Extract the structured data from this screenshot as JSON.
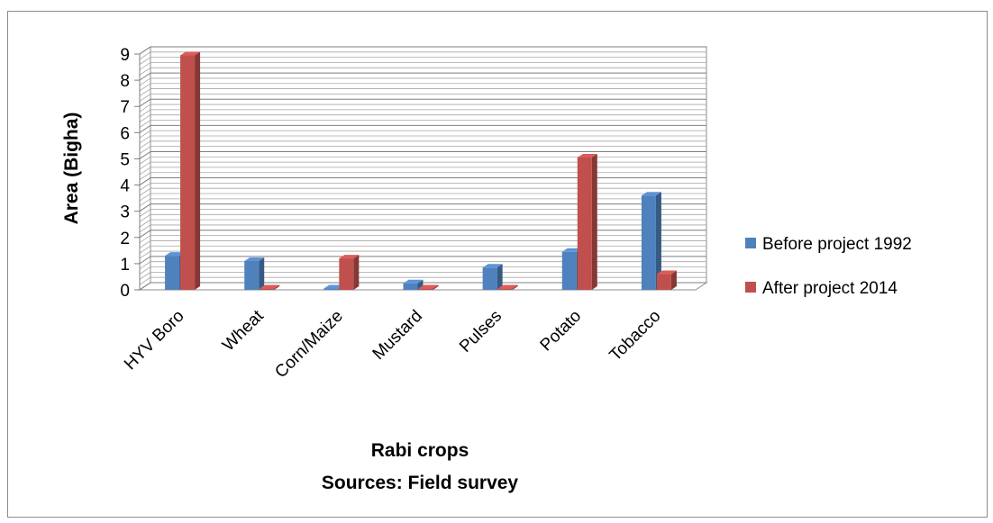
{
  "chart_data": {
    "type": "bar",
    "categories": [
      "HYV Boro",
      "Wheat",
      "Corn/Maize",
      "Mustard",
      "Pulses",
      "Potato",
      "Tobacco"
    ],
    "series": [
      {
        "name": "Before project 1992",
        "color": "#4f81bd",
        "values": [
          1.3,
          1.1,
          0.05,
          0.25,
          0.85,
          1.45,
          3.6
        ]
      },
      {
        "name": "After project 2014",
        "color": "#c0504d",
        "values": [
          8.95,
          0.05,
          1.2,
          0.05,
          0.05,
          5.05,
          0.6
        ]
      }
    ],
    "ylabel": "Area (Bigha)",
    "xlabel": "Rabi crops",
    "source": "Sources: Field survey",
    "ylim": [
      0,
      9
    ],
    "yticks": [
      0,
      1,
      2,
      3,
      4,
      5,
      6,
      7,
      8,
      9
    ],
    "grid": true,
    "legend_position": "right",
    "style": "3d-clustered-column"
  }
}
